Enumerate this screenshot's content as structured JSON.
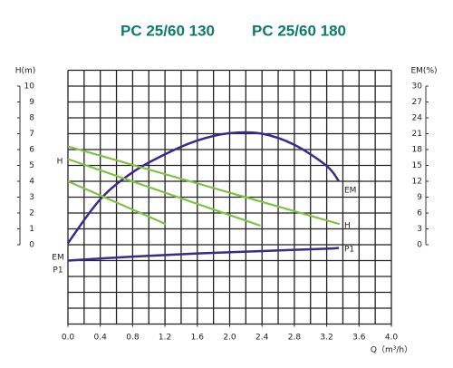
{
  "chart_data": {
    "type": "line",
    "titles": [
      "PC 25/60 130",
      "PC 25/60 180"
    ],
    "y_label": "H(m)",
    "y2_label": "EM(%)",
    "x_label": "Q（m³/h）",
    "xlim": [
      0,
      4
    ],
    "ylim": [
      0,
      10
    ],
    "y2lim": [
      0,
      30
    ],
    "xticks": [
      {
        "value": 0,
        "label": "0.0"
      },
      0.4,
      0.8,
      1.2,
      1.6,
      {
        "value": 2,
        "label": "2.0"
      },
      2.4,
      2.8,
      3.2,
      3.6,
      {
        "value": 4,
        "label": "4.0"
      }
    ],
    "yticks": [
      0,
      1,
      2,
      3,
      4,
      5,
      6,
      7,
      8,
      9,
      10
    ],
    "y2ticks": [
      0,
      3,
      6,
      9,
      12,
      15,
      18,
      21,
      24,
      27,
      30
    ],
    "series": [
      {
        "name": "EM",
        "color": "#3b2a8a",
        "axis": "y2",
        "x": [
          0,
          0.4,
          0.8,
          1.2,
          1.6,
          2.0,
          2.4,
          2.8,
          3.2,
          3.35
        ],
        "values": [
          0.3,
          8.6,
          13.7,
          17.1,
          19.7,
          21.1,
          21,
          18.9,
          14.9,
          12
        ]
      },
      {
        "name": "P1",
        "color": "#3b2a8a",
        "x": [
          0,
          0.8,
          1.6,
          2.4,
          3.2,
          3.35
        ],
        "values": [
          -1.0,
          -0.75,
          -0.55,
          -0.4,
          -0.25,
          -0.2
        ]
      },
      {
        "name": "H",
        "color": "#7cc243",
        "x": [
          0,
          1.21
        ],
        "values": [
          4.0,
          1.3
        ]
      },
      {
        "name": "H",
        "color": "#7cc243",
        "x": [
          0,
          2.38
        ],
        "values": [
          5.4,
          1.2
        ]
      },
      {
        "name": "H",
        "color": "#7cc243",
        "x": [
          0,
          3.36
        ],
        "values": [
          6.2,
          1.3
        ]
      }
    ]
  }
}
